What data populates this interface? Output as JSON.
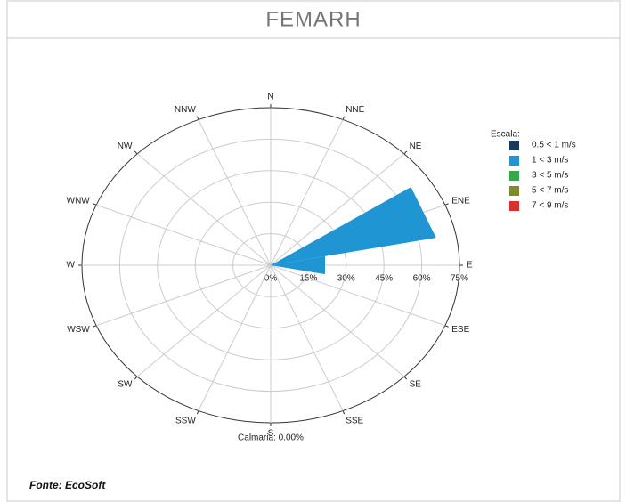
{
  "header": "FEMARH",
  "chart_data": {
    "type": "windrose",
    "categories": [
      "N",
      "NNE",
      "NE",
      "ENE",
      "E",
      "ESE",
      "SE",
      "SSE",
      "S",
      "SSW",
      "SW",
      "WSW",
      "W",
      "WNW",
      "NW",
      "NNW"
    ],
    "series": [
      {
        "name": "0.5 < 1 m/s",
        "color": "#1b3a5a",
        "values": [
          0,
          0,
          0,
          0,
          0,
          0,
          0,
          0,
          0,
          0,
          0,
          0,
          0,
          0,
          0,
          0
        ]
      },
      {
        "name": "1 < 3 m/s",
        "color": "#1f96d3",
        "values": [
          0,
          0,
          0,
          67,
          22,
          0,
          0,
          0,
          0,
          0,
          0,
          0,
          0,
          0,
          0,
          0
        ]
      },
      {
        "name": "3 < 5 m/s",
        "color": "#3aa64a",
        "values": [
          0,
          0,
          0,
          0,
          0,
          0,
          0,
          0,
          0,
          0,
          0,
          0,
          0,
          0,
          0,
          0
        ]
      },
      {
        "name": "5 < 7 m/s",
        "color": "#7e8a2c",
        "values": [
          0,
          0,
          0,
          0,
          0,
          0,
          0,
          0,
          0,
          0,
          0,
          0,
          0,
          0,
          0,
          0
        ]
      },
      {
        "name": "7 < 9 m/s",
        "color": "#d8302c",
        "values": [
          0,
          0,
          0,
          0,
          0,
          0,
          0,
          0,
          0,
          0,
          0,
          0,
          0,
          0,
          0,
          0
        ]
      }
    ],
    "rlim": [
      0,
      75
    ],
    "rticks": [
      {
        "value": 0,
        "label": "0%"
      },
      {
        "value": 15,
        "label": "15%"
      },
      {
        "value": 30,
        "label": "30%"
      },
      {
        "value": 45,
        "label": "45%"
      },
      {
        "value": 60,
        "label": "60%"
      },
      {
        "value": 75,
        "label": "75%"
      }
    ],
    "legend_title": "Escala:",
    "annotation": "Calmaria: 0.00%",
    "grid": true
  },
  "source": "Fonte: EcoSoft"
}
